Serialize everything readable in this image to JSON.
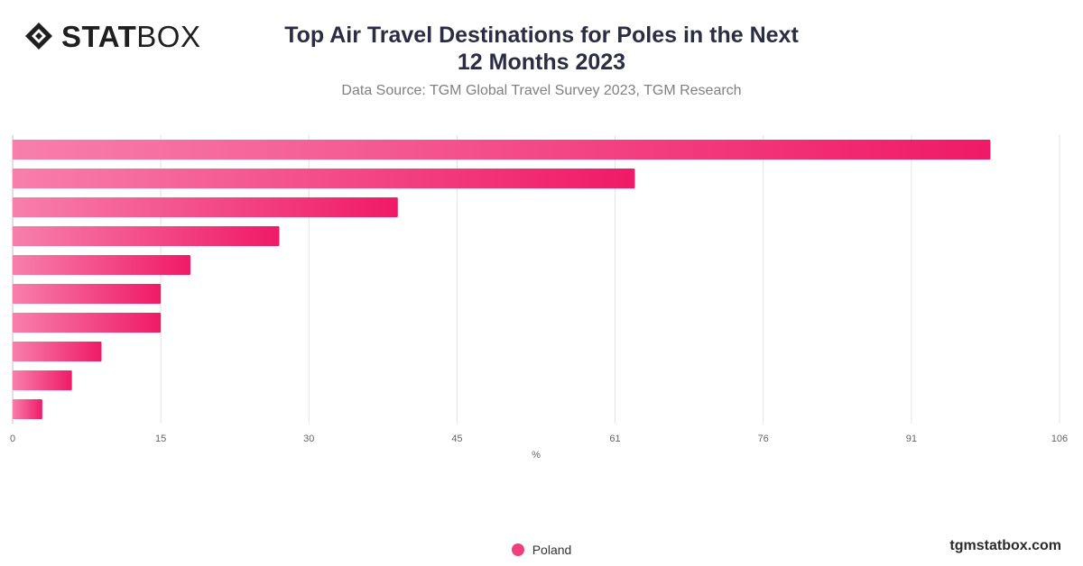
{
  "brand": {
    "logo_bold": "STAT",
    "logo_regular": "BOX",
    "site": "tgmstatbox.com"
  },
  "header": {
    "title": "Top Air Travel Destinations for Poles in the Next 12 Months 2023",
    "subtitle": "Data Source: TGM Global Travel Survey 2023, TGM Research"
  },
  "legend": {
    "items": [
      {
        "label": "Poland",
        "color": "#f0407a"
      }
    ]
  },
  "chart_data": {
    "type": "bar",
    "orientation": "horizontal",
    "categories": [
      "",
      "",
      "",
      "",
      "",
      "",
      "",
      "",
      "",
      ""
    ],
    "series": [
      {
        "name": "Poland",
        "values": [
          99,
          63,
          39,
          27,
          18,
          15,
          15,
          9,
          6,
          3
        ]
      }
    ],
    "xlabel": "%",
    "ylabel": "",
    "xlim": [
      0,
      106
    ],
    "x_ticks": [
      "0",
      "15",
      "30",
      "45",
      "61",
      "76",
      "91",
      "106"
    ],
    "grid": true,
    "legend_position": "bottom",
    "colors": {
      "bar_start": "#f77fab",
      "bar_end": "#f01a66"
    }
  }
}
